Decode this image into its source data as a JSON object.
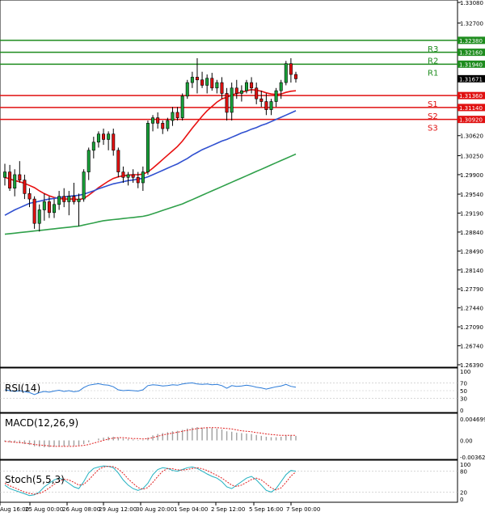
{
  "chart_data": {
    "type": "candlestick",
    "main": {
      "ylim": [
        1.2639,
        1.3308
      ],
      "y_ticks": [
        "1.33080",
        "1.32700",
        "1.32380",
        "1.32160",
        "1.31940",
        "1.31671",
        "1.31350",
        "1.31140",
        "1.30920",
        "1.30620",
        "1.30250",
        "1.29900",
        "1.29540",
        "1.29190",
        "1.28840",
        "1.28490",
        "1.28140",
        "1.27790",
        "1.27440",
        "1.27090",
        "1.26740",
        "1.26390"
      ],
      "current_price": {
        "value": 1.31671,
        "label": "1.31671"
      },
      "pivot_levels": [
        {
          "name": "R3",
          "value": 1.3238,
          "label": "1.32380",
          "color": "#1e8c1e"
        },
        {
          "name": "R2",
          "value": 1.3216,
          "label": "1.32160",
          "color": "#1e8c1e"
        },
        {
          "name": "R1",
          "value": 1.3194,
          "label": "1.31940",
          "color": "#1e8c1e"
        },
        {
          "name": "S1",
          "value": 1.3136,
          "label": "1.31360",
          "color": "#e01010"
        },
        {
          "name": "S2",
          "value": 1.3114,
          "label": "1.31140",
          "color": "#e01010"
        },
        {
          "name": "S3",
          "value": 1.3092,
          "label": "1.30920",
          "color": "#e01010"
        }
      ],
      "ohlc": [
        [
          1.2985,
          1.301,
          1.297,
          1.2995
        ],
        [
          1.2995,
          1.3008,
          1.296,
          1.2965
        ],
        [
          1.2965,
          1.3,
          1.295,
          1.299
        ],
        [
          1.299,
          1.3015,
          1.2975,
          1.298
        ],
        [
          1.298,
          1.299,
          1.2945,
          1.2955
        ],
        [
          1.2955,
          1.2965,
          1.293,
          1.2945
        ],
        [
          1.2945,
          1.295,
          1.289,
          1.29
        ],
        [
          1.29,
          1.2935,
          1.2885,
          1.2925
        ],
        [
          1.2925,
          1.2955,
          1.2905,
          1.294
        ],
        [
          1.294,
          1.295,
          1.291,
          1.292
        ],
        [
          1.292,
          1.2945,
          1.291,
          1.2935
        ],
        [
          1.2935,
          1.296,
          1.2925,
          1.295
        ],
        [
          1.295,
          1.2965,
          1.293,
          1.294
        ],
        [
          1.294,
          1.296,
          1.2915,
          1.295
        ],
        [
          1.295,
          1.2975,
          1.2935,
          1.294
        ],
        [
          1.294,
          1.2955,
          1.2895,
          1.2945
        ],
        [
          1.2945,
          1.3,
          1.294,
          1.2995
        ],
        [
          1.2995,
          1.304,
          1.298,
          1.3035
        ],
        [
          1.3035,
          1.306,
          1.302,
          1.305
        ],
        [
          1.305,
          1.307,
          1.304,
          1.3065
        ],
        [
          1.3065,
          1.3075,
          1.3045,
          1.3055
        ],
        [
          1.3055,
          1.307,
          1.3035,
          1.3065
        ],
        [
          1.3065,
          1.3075,
          1.3025,
          1.3035
        ],
        [
          1.3035,
          1.304,
          1.2985,
          1.2995
        ],
        [
          1.2995,
          1.3005,
          1.2975,
          1.2985
        ],
        [
          1.2985,
          1.2995,
          1.297,
          1.299
        ],
        [
          1.299,
          1.3,
          1.2975,
          1.2985
        ],
        [
          1.2985,
          1.2995,
          1.2965,
          1.2975
        ],
        [
          1.2975,
          1.3005,
          1.296,
          1.2995
        ],
        [
          1.2995,
          1.309,
          1.299,
          1.3085
        ],
        [
          1.3085,
          1.31,
          1.307,
          1.3095
        ],
        [
          1.3095,
          1.3105,
          1.3075,
          1.3085
        ],
        [
          1.3085,
          1.309,
          1.3065,
          1.3075
        ],
        [
          1.3075,
          1.3095,
          1.307,
          1.309
        ],
        [
          1.309,
          1.3115,
          1.308,
          1.3105
        ],
        [
          1.3105,
          1.3115,
          1.309,
          1.3095
        ],
        [
          1.3095,
          1.314,
          1.309,
          1.3135
        ],
        [
          1.3135,
          1.3165,
          1.313,
          1.316
        ],
        [
          1.316,
          1.318,
          1.315,
          1.317
        ],
        [
          1.317,
          1.3205,
          1.314,
          1.3165
        ],
        [
          1.3165,
          1.318,
          1.315,
          1.3155
        ],
        [
          1.3155,
          1.3175,
          1.314,
          1.3168
        ],
        [
          1.3168,
          1.3178,
          1.3145,
          1.315
        ],
        [
          1.315,
          1.3165,
          1.314,
          1.316
        ],
        [
          1.316,
          1.317,
          1.313,
          1.314
        ],
        [
          1.314,
          1.315,
          1.309,
          1.3105
        ],
        [
          1.3105,
          1.316,
          1.309,
          1.315
        ],
        [
          1.315,
          1.3165,
          1.313,
          1.314
        ],
        [
          1.314,
          1.3155,
          1.3125,
          1.3145
        ],
        [
          1.3145,
          1.3165,
          1.314,
          1.316
        ],
        [
          1.316,
          1.317,
          1.314,
          1.315
        ],
        [
          1.315,
          1.316,
          1.312,
          1.313
        ],
        [
          1.313,
          1.3145,
          1.3115,
          1.3125
        ],
        [
          1.3125,
          1.314,
          1.31,
          1.311
        ],
        [
          1.311,
          1.313,
          1.31,
          1.3125
        ],
        [
          1.3125,
          1.315,
          1.3115,
          1.3145
        ],
        [
          1.3145,
          1.3165,
          1.313,
          1.316
        ],
        [
          1.316,
          1.32,
          1.3155,
          1.3195
        ],
        [
          1.3195,
          1.3205,
          1.316,
          1.3175
        ],
        [
          1.3175,
          1.318,
          1.316,
          1.3167
        ]
      ],
      "ma_series": [
        {
          "name": "ma-red",
          "color": "#e81010",
          "values": [
            1.2985,
            1.2982,
            1.2979,
            1.2977,
            1.2974,
            1.297,
            1.2966,
            1.296,
            1.2955,
            1.2951,
            1.2948,
            1.2946,
            1.2945,
            1.2945,
            1.2945,
            1.2944,
            1.2946,
            1.2952,
            1.2959,
            1.2966,
            1.2972,
            1.2978,
            1.2983,
            1.2986,
            1.2988,
            1.2989,
            1.299,
            1.299,
            1.2991,
            1.2995,
            1.3002,
            1.301,
            1.3018,
            1.3026,
            1.3034,
            1.3042,
            1.3052,
            1.3064,
            1.3076,
            1.3087,
            1.3098,
            1.3108,
            1.3116,
            1.3124,
            1.313,
            1.3133,
            1.3137,
            1.314,
            1.3142,
            1.3145,
            1.3147,
            1.3146,
            1.3144,
            1.3141,
            1.3139,
            1.3138,
            1.3139,
            1.3142,
            1.3144,
            1.3145
          ]
        },
        {
          "name": "ma-blue",
          "color": "#3050d0",
          "values": [
            1.2915,
            1.292,
            1.2925,
            1.2929,
            1.2933,
            1.2937,
            1.2939,
            1.2941,
            1.2943,
            1.2945,
            1.2946,
            1.2948,
            1.2949,
            1.295,
            1.2951,
            1.2952,
            1.2954,
            1.2957,
            1.296,
            1.2964,
            1.2967,
            1.297,
            1.2973,
            1.2975,
            1.2977,
            1.2979,
            1.298,
            1.2982,
            1.2983,
            1.2986,
            1.299,
            1.2994,
            1.2998,
            1.3002,
            1.3006,
            1.301,
            1.3015,
            1.302,
            1.3026,
            1.3031,
            1.3036,
            1.304,
            1.3044,
            1.3048,
            1.3052,
            1.3055,
            1.3059,
            1.3063,
            1.3067,
            1.307,
            1.3074,
            1.3077,
            1.3081,
            1.3084,
            1.3088,
            1.3092,
            1.3096,
            1.31,
            1.3104,
            1.3108
          ]
        },
        {
          "name": "ma-green",
          "color": "#2fa04a",
          "values": [
            1.288,
            1.2881,
            1.2882,
            1.2883,
            1.2884,
            1.2885,
            1.2886,
            1.2887,
            1.2888,
            1.2889,
            1.289,
            1.2891,
            1.2892,
            1.2893,
            1.2894,
            1.2895,
            1.2897,
            1.2899,
            1.2901,
            1.2903,
            1.2905,
            1.2906,
            1.2907,
            1.2908,
            1.2909,
            1.291,
            1.2911,
            1.2912,
            1.2913,
            1.2915,
            1.2918,
            1.2921,
            1.2924,
            1.2927,
            1.293,
            1.2933,
            1.2936,
            1.294,
            1.2944,
            1.2948,
            1.2952,
            1.2956,
            1.296,
            1.2964,
            1.2968,
            1.2972,
            1.2976,
            1.298,
            1.2984,
            1.2988,
            1.2992,
            1.2996,
            1.3,
            1.3004,
            1.3008,
            1.3012,
            1.3016,
            1.302,
            1.3024,
            1.3028
          ]
        }
      ]
    },
    "rsi": {
      "label": "RSI(14)",
      "ylim": [
        0,
        100
      ],
      "y_ticks": [
        "100",
        "70",
        "50",
        "30",
        "0"
      ],
      "levels": [
        70,
        50,
        30
      ],
      "values": [
        52,
        50,
        48,
        50,
        47,
        45,
        40,
        45,
        48,
        46,
        49,
        51,
        48,
        50,
        47,
        49,
        58,
        64,
        66,
        68,
        65,
        64,
        60,
        52,
        50,
        51,
        50,
        49,
        52,
        63,
        65,
        64,
        62,
        63,
        65,
        64,
        67,
        69,
        70,
        67,
        66,
        67,
        65,
        66,
        63,
        56,
        63,
        61,
        62,
        64,
        62,
        59,
        57,
        54,
        57,
        60,
        62,
        66,
        61,
        59
      ]
    },
    "macd": {
      "label": "MACD(12,26,9)",
      "ylim": [
        -0.003627,
        0.004699
      ],
      "y_ticks": [
        "0.004699",
        "0.00",
        "-0.003627"
      ],
      "histogram": [
        -0.0003,
        -0.0004,
        -0.0005,
        -0.0006,
        -0.0008,
        -0.001,
        -0.0013,
        -0.0014,
        -0.0015,
        -0.0015,
        -0.0014,
        -0.0013,
        -0.0013,
        -0.0012,
        -0.0012,
        -0.0011,
        -0.0008,
        -0.0004,
        0.0,
        0.0004,
        0.0006,
        0.0008,
        0.0008,
        0.0006,
        0.0004,
        0.0003,
        0.0002,
        0.0001,
        0.0001,
        0.0006,
        0.0011,
        0.0014,
        0.0016,
        0.0018,
        0.002,
        0.0021,
        0.0023,
        0.0026,
        0.0028,
        0.0029,
        0.0028,
        0.0028,
        0.0027,
        0.0026,
        0.0024,
        0.002,
        0.0019,
        0.0017,
        0.0016,
        0.0015,
        0.0014,
        0.0012,
        0.001,
        0.0008,
        0.0007,
        0.0007,
        0.0008,
        0.0011,
        0.0011,
        0.001
      ],
      "signal": [
        -0.0002,
        -0.0003,
        -0.0004,
        -0.0005,
        -0.0006,
        -0.0007,
        -0.0009,
        -0.001,
        -0.0011,
        -0.0012,
        -0.0013,
        -0.0013,
        -0.0013,
        -0.0013,
        -0.0013,
        -0.0012,
        -0.0011,
        -0.0009,
        -0.0006,
        -0.0003,
        0.0,
        0.0003,
        0.0005,
        0.0006,
        0.0006,
        0.0005,
        0.0004,
        0.0004,
        0.0003,
        0.0004,
        0.0006,
        0.0009,
        0.0012,
        0.0014,
        0.0016,
        0.0018,
        0.002,
        0.0022,
        0.0024,
        0.0026,
        0.0027,
        0.0028,
        0.0028,
        0.0028,
        0.0027,
        0.0026,
        0.0025,
        0.0023,
        0.0021,
        0.002,
        0.0019,
        0.0017,
        0.0016,
        0.0014,
        0.0013,
        0.0012,
        0.0011,
        0.0011,
        0.0011,
        0.0011
      ]
    },
    "stoch": {
      "label": "Stoch(5,5,3)",
      "ylim": [
        0,
        100
      ],
      "y_ticks": [
        "100",
        "80",
        "20",
        "0"
      ],
      "levels": [
        80,
        20
      ],
      "k": [
        40,
        30,
        25,
        20,
        15,
        10,
        12,
        20,
        35,
        45,
        55,
        60,
        55,
        45,
        35,
        30,
        50,
        75,
        88,
        92,
        95,
        94,
        90,
        75,
        55,
        40,
        30,
        25,
        30,
        45,
        70,
        85,
        90,
        88,
        82,
        80,
        85,
        90,
        92,
        88,
        80,
        72,
        65,
        60,
        50,
        35,
        30,
        40,
        50,
        60,
        65,
        55,
        40,
        25,
        20,
        30,
        50,
        70,
        82,
        80
      ],
      "d": [
        45,
        38,
        32,
        26,
        20,
        16,
        14,
        16,
        22,
        32,
        42,
        52,
        57,
        55,
        48,
        40,
        42,
        55,
        70,
        85,
        92,
        94,
        93,
        86,
        74,
        58,
        45,
        33,
        28,
        33,
        48,
        65,
        80,
        88,
        87,
        84,
        83,
        85,
        88,
        90,
        87,
        82,
        75,
        68,
        60,
        50,
        40,
        36,
        40,
        48,
        56,
        60,
        55,
        44,
        32,
        26,
        32,
        48,
        66,
        78
      ]
    },
    "x_labels": [
      "Aug 16:00",
      "25 Aug 00:00",
      "26 Aug 08:00",
      "29 Aug 12:00",
      "30 Aug 20:00",
      "1 Sep 04:00",
      "2 Sep 12:00",
      "5 Sep 16:00",
      "7 Sep 00:00"
    ]
  }
}
